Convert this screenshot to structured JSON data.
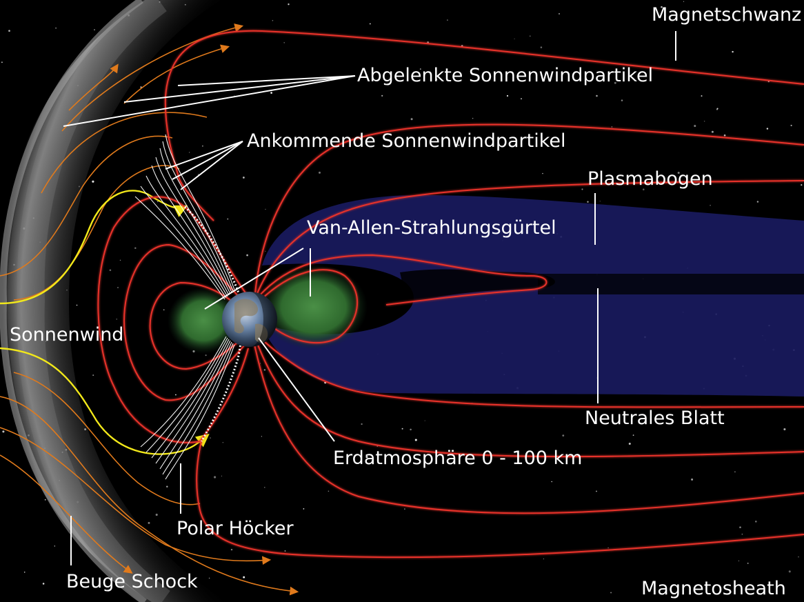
{
  "labels": {
    "magnetotail": "Magnetschwanz",
    "deflected": "Abgelenkte Sonnenwindpartikel",
    "incoming": "Ankommende Sonnenwindpartikel",
    "plasmasphere": "Plasmabogen",
    "van_allen": "Van-Allen-Strahlungsgürtel",
    "solar_wind": "Sonnenwind",
    "neutral_sheet": "Neutrales Blatt",
    "atmosphere": "Erdatmosphäre 0 - 100 km",
    "polar_cusp": "Polar Höcker",
    "bow_shock": "Beuge Schock",
    "magnetosheath": "Magnetosheath"
  },
  "colors": {
    "background": "#000000",
    "field_line": "#e8322a",
    "solar_wind_line": "#e07a1c",
    "solar_wind_highlight": "#f2e81a",
    "plasma_sheet": "#191a5e",
    "radiation_belt": "#3d7a3a",
    "leader_line": "#ffffff"
  },
  "icons": {
    "earth": "earth-globe-icon"
  }
}
